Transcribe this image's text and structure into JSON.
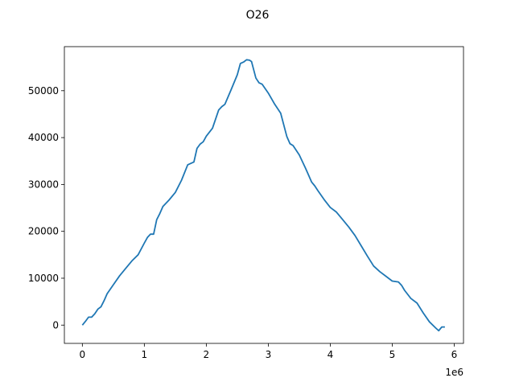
{
  "chart_data": {
    "type": "line",
    "title": "O26",
    "xlabel": "",
    "ylabel": "",
    "x_offset_label": "1e6",
    "xlim": [
      -0.29,
      6.15
    ],
    "ylim": [
      -3900,
      59400
    ],
    "x_ticks": [
      0,
      1,
      2,
      3,
      4,
      5,
      6
    ],
    "x_tick_labels": [
      "0",
      "1",
      "2",
      "3",
      "4",
      "5",
      "6"
    ],
    "y_ticks": [
      0,
      10000,
      20000,
      30000,
      40000,
      50000
    ],
    "y_tick_labels": [
      "0",
      "10000",
      "20000",
      "30000",
      "40000",
      "50000"
    ],
    "grid": false,
    "series": [
      {
        "color": "#1f77b4",
        "x": [
          0.0,
          0.05,
          0.1,
          0.15,
          0.2,
          0.25,
          0.3,
          0.35,
          0.4,
          0.5,
          0.6,
          0.7,
          0.8,
          0.9,
          1.0,
          1.05,
          1.1,
          1.15,
          1.2,
          1.25,
          1.3,
          1.4,
          1.5,
          1.6,
          1.7,
          1.8,
          1.85,
          1.9,
          1.95,
          2.0,
          2.1,
          2.2,
          2.25,
          2.3,
          2.4,
          2.5,
          2.55,
          2.6,
          2.65,
          2.7,
          2.73,
          2.77,
          2.8,
          2.85,
          2.9,
          3.0,
          3.1,
          3.2,
          3.3,
          3.35,
          3.4,
          3.5,
          3.6,
          3.7,
          3.75,
          3.8,
          3.9,
          4.0,
          4.1,
          4.2,
          4.3,
          4.4,
          4.5,
          4.6,
          4.7,
          4.8,
          4.9,
          5.0,
          5.1,
          5.15,
          5.2,
          5.3,
          5.4,
          5.5,
          5.6,
          5.7,
          5.75,
          5.8,
          5.85
        ],
        "y": [
          0,
          800,
          1700,
          1700,
          2400,
          3400,
          3900,
          5200,
          6700,
          8600,
          10500,
          12100,
          13700,
          15000,
          17500,
          18700,
          19400,
          19400,
          22500,
          23800,
          25300,
          26700,
          28300,
          30900,
          34200,
          34800,
          37700,
          38600,
          39100,
          40300,
          42000,
          45900,
          46600,
          47100,
          50200,
          53400,
          55800,
          56100,
          56600,
          56500,
          56200,
          54200,
          52700,
          51700,
          51400,
          49500,
          47200,
          45200,
          40200,
          38700,
          38300,
          36300,
          33500,
          30500,
          29700,
          28700,
          26800,
          25100,
          24100,
          22500,
          20900,
          19100,
          16900,
          14700,
          12600,
          11400,
          10400,
          9400,
          9200,
          8500,
          7400,
          5700,
          4700,
          2600,
          700,
          -600,
          -1200,
          -400,
          -400
        ]
      }
    ]
  }
}
